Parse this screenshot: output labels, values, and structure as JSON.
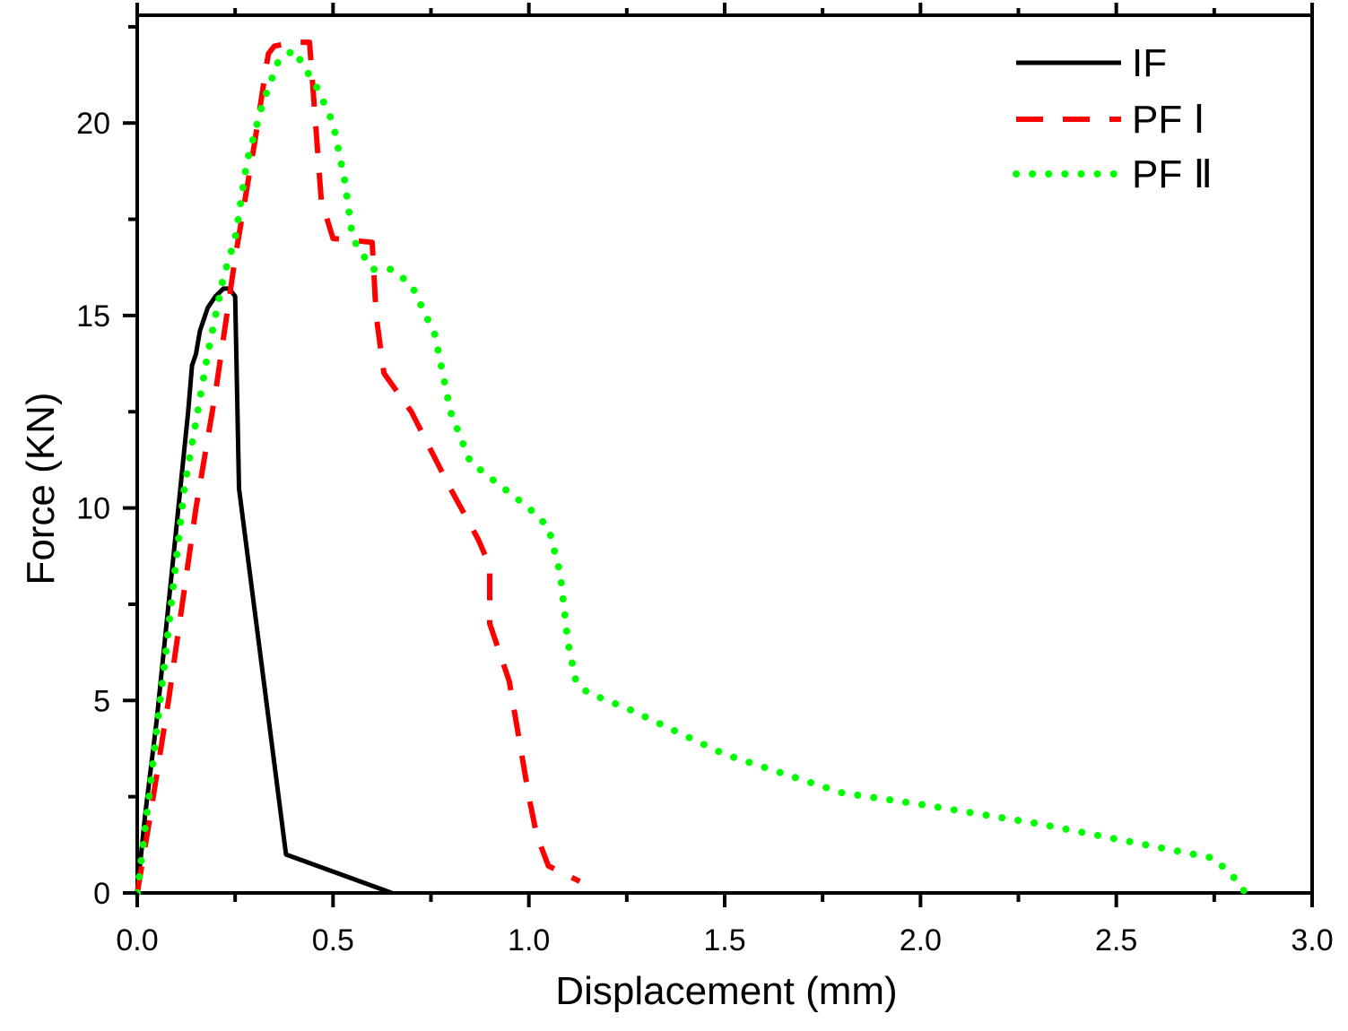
{
  "chart_data": {
    "type": "line",
    "xlabel": "Displacement (mm)",
    "ylabel": "Force (KN)",
    "xlim": [
      0,
      3.0
    ],
    "ylim": [
      0,
      22.8
    ],
    "xticks": [
      0.0,
      0.5,
      1.0,
      1.5,
      2.0,
      2.5,
      3.0
    ],
    "xtick_labels": [
      "0.0",
      "0.5",
      "1.0",
      "1.5",
      "2.0",
      "2.5",
      "3.0"
    ],
    "yticks": [
      0,
      5,
      10,
      15,
      20
    ],
    "ytick_labels": [
      "0",
      "5",
      "10",
      "15",
      "20"
    ],
    "grid": false,
    "legend_position": "top-right",
    "series": [
      {
        "name": "IF",
        "color": "#000000",
        "style": "solid",
        "x": [
          0.0,
          0.02,
          0.05,
          0.08,
          0.1,
          0.12,
          0.13,
          0.14,
          0.15,
          0.16,
          0.18,
          0.2,
          0.22,
          0.235,
          0.25,
          0.26,
          0.38,
          0.65
        ],
        "y": [
          0.0,
          2.0,
          4.5,
          7.5,
          9.5,
          11.5,
          12.5,
          13.7,
          14.0,
          14.6,
          15.2,
          15.5,
          15.7,
          15.7,
          15.5,
          10.5,
          1.0,
          0.0
        ]
      },
      {
        "name": "PF Ⅰ",
        "color": "#ff0000",
        "style": "dashed",
        "x": [
          0.0,
          0.03,
          0.08,
          0.15,
          0.2,
          0.25,
          0.3,
          0.33,
          0.335,
          0.35,
          0.4,
          0.44,
          0.47,
          0.5,
          0.6,
          0.61,
          0.63,
          0.7,
          0.8,
          0.87,
          0.9,
          0.9,
          0.95,
          1.0,
          1.02,
          1.05,
          1.13
        ],
        "y": [
          0.0,
          1.8,
          5.0,
          10.0,
          13.0,
          16.5,
          19.5,
          21.5,
          21.8,
          22.0,
          22.1,
          22.1,
          18.0,
          17.0,
          16.9,
          15.0,
          13.5,
          12.5,
          10.5,
          9.2,
          8.5,
          7.0,
          5.5,
          2.5,
          1.5,
          0.7,
          0.3
        ]
      },
      {
        "name": "PF Ⅱ",
        "color": "#00ff00",
        "style": "dotted",
        "x": [
          0.0,
          0.03,
          0.07,
          0.12,
          0.18,
          0.22,
          0.25,
          0.28,
          0.32,
          0.36,
          0.4,
          0.43,
          0.46,
          0.5,
          0.53,
          0.55,
          0.6,
          0.65,
          0.7,
          0.76,
          0.8,
          0.85,
          0.9,
          1.0,
          1.05,
          1.08,
          1.1,
          1.12,
          1.15,
          1.25,
          1.5,
          1.8,
          2.0,
          2.3,
          2.5,
          2.75,
          2.8,
          2.83
        ],
        "y": [
          0.0,
          2.5,
          6.0,
          10.5,
          14.0,
          16.0,
          17.0,
          19.0,
          20.5,
          21.6,
          21.9,
          21.4,
          20.9,
          20.0,
          18.5,
          17.0,
          16.2,
          16.2,
          15.8,
          14.5,
          12.5,
          11.2,
          10.8,
          10.0,
          9.5,
          8.3,
          6.5,
          5.5,
          5.2,
          4.8,
          3.6,
          2.6,
          2.3,
          1.8,
          1.4,
          0.9,
          0.4,
          0.0
        ]
      }
    ]
  }
}
